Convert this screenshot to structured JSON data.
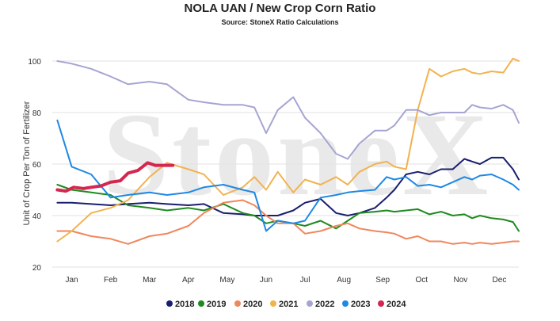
{
  "chart_data": {
    "type": "line",
    "title": "NOLA UAN / New Crop Corn Ratio",
    "subtitle": "Source: StoneX Ratio Calculations",
    "watermark": "StoneX",
    "xlabel": "",
    "ylabel": "Unit of Crop Per Ton of Fertilizer",
    "ylim": [
      20,
      100
    ],
    "yticks": [
      20,
      40,
      60,
      80,
      100
    ],
    "xlim": [
      0,
      12
    ],
    "x_tick_positions": [
      0.5,
      1.5,
      2.5,
      3.5,
      4.5,
      5.5,
      6.5,
      7.5,
      8.5,
      9.5,
      10.5,
      11.5
    ],
    "x_tick_labels": [
      "Jan",
      "Feb",
      "Mar",
      "Apr",
      "May",
      "Jun",
      "Jul",
      "Aug",
      "Sep",
      "Oct",
      "Nov",
      "Dec"
    ],
    "grid": "horizontal",
    "legend": "bottom",
    "series": [
      {
        "name": "2018",
        "color": "#1a1e6e",
        "x": [
          0.13,
          0.5,
          1.0,
          1.5,
          1.95,
          2.5,
          2.95,
          3.5,
          3.9,
          4.4,
          4.9,
          5.2,
          5.5,
          5.8,
          6.2,
          6.5,
          6.9,
          7.3,
          7.6,
          7.9,
          8.3,
          8.6,
          8.8,
          9.1,
          9.4,
          9.7,
          10.0,
          10.3,
          10.6,
          10.8,
          11.0,
          11.3,
          11.6,
          11.85,
          12.0
        ],
        "y": [
          45,
          45,
          44.5,
          44,
          44.5,
          45,
          44.5,
          44,
          44.5,
          41,
          40.5,
          40,
          40,
          40,
          42,
          45,
          46.5,
          41,
          40,
          41,
          43,
          47,
          50,
          56,
          57,
          56,
          58,
          58,
          62,
          61,
          60,
          62.5,
          62.5,
          58,
          54
        ]
      },
      {
        "name": "2019",
        "color": "#1e8a1e",
        "x": [
          0.13,
          0.5,
          1.0,
          1.5,
          1.95,
          2.5,
          2.95,
          3.5,
          3.9,
          4.4,
          4.9,
          5.2,
          5.5,
          5.8,
          6.2,
          6.5,
          6.9,
          7.3,
          7.6,
          7.9,
          8.3,
          8.6,
          8.8,
          9.1,
          9.4,
          9.7,
          10.0,
          10.3,
          10.6,
          10.8,
          11.0,
          11.3,
          11.6,
          11.85,
          12.0
        ],
        "y": [
          52,
          50,
          49,
          48,
          44,
          43,
          42,
          43,
          42,
          44.5,
          41,
          40,
          37,
          38,
          37,
          36,
          38,
          35,
          38,
          41,
          41.5,
          42,
          41.5,
          42,
          42.5,
          40.5,
          41.5,
          40,
          40.5,
          39,
          40,
          39,
          38.5,
          37.5,
          34
        ]
      },
      {
        "name": "2020",
        "color": "#f0875c",
        "x": [
          0.13,
          0.5,
          1.0,
          1.5,
          1.95,
          2.5,
          2.95,
          3.5,
          3.9,
          4.4,
          4.9,
          5.2,
          5.5,
          5.8,
          6.2,
          6.5,
          6.9,
          7.3,
          7.6,
          7.9,
          8.3,
          8.6,
          8.8,
          9.1,
          9.4,
          9.7,
          10.0,
          10.3,
          10.6,
          10.8,
          11.0,
          11.3,
          11.6,
          11.85,
          12.0
        ],
        "y": [
          34,
          34,
          32,
          31,
          29,
          32,
          33,
          36,
          41,
          45,
          46,
          44,
          40,
          37,
          37,
          33,
          34,
          36,
          37,
          35,
          34,
          33.5,
          33,
          31,
          32,
          30,
          30,
          29,
          29.5,
          29,
          29.5,
          29,
          29.5,
          30,
          30
        ]
      },
      {
        "name": "2021",
        "color": "#f2b24f",
        "x": [
          0.13,
          0.5,
          1.0,
          1.5,
          1.95,
          2.5,
          2.95,
          3.5,
          3.9,
          4.4,
          4.9,
          5.2,
          5.5,
          5.8,
          6.2,
          6.5,
          6.9,
          7.3,
          7.6,
          7.9,
          8.3,
          8.6,
          8.8,
          9.1,
          9.4,
          9.7,
          10.0,
          10.3,
          10.6,
          10.8,
          11.0,
          11.3,
          11.6,
          11.85,
          12.0
        ],
        "y": [
          30,
          34,
          41,
          43,
          46,
          55,
          60.5,
          58,
          56,
          48,
          51,
          55,
          50,
          57,
          49,
          54,
          52,
          55,
          52,
          57,
          60,
          61,
          59,
          58,
          81,
          97,
          94,
          96,
          97,
          95.5,
          95,
          96,
          95.5,
          101,
          100
        ]
      },
      {
        "name": "2022",
        "color": "#a5a5d2",
        "x": [
          0.13,
          0.5,
          1.0,
          1.5,
          1.95,
          2.5,
          2.95,
          3.5,
          3.9,
          4.4,
          4.9,
          5.2,
          5.5,
          5.8,
          6.2,
          6.5,
          6.9,
          7.3,
          7.6,
          7.9,
          8.3,
          8.6,
          8.8,
          9.1,
          9.4,
          9.7,
          10.0,
          10.3,
          10.6,
          10.8,
          11.0,
          11.3,
          11.6,
          11.85,
          12.0
        ],
        "y": [
          100,
          99,
          97,
          94,
          91,
          92,
          91,
          85,
          84,
          83,
          83,
          82,
          72,
          81,
          86,
          78,
          72,
          64,
          62,
          68,
          73,
          73,
          75,
          81,
          81,
          79,
          80,
          80,
          80,
          83,
          82,
          81.5,
          83,
          81,
          76
        ]
      },
      {
        "name": "2023",
        "color": "#1e88e5",
        "x": [
          0.13,
          0.5,
          1.0,
          1.5,
          1.95,
          2.5,
          2.95,
          3.5,
          3.9,
          4.4,
          4.9,
          5.2,
          5.5,
          5.8,
          6.2,
          6.5,
          6.9,
          7.3,
          7.6,
          7.9,
          8.3,
          8.6,
          8.8,
          9.1,
          9.4,
          9.7,
          10.0,
          10.3,
          10.6,
          10.8,
          11.0,
          11.3,
          11.6,
          11.85,
          12.0
        ],
        "y": [
          77,
          59,
          56,
          47,
          48,
          49,
          48,
          49,
          51,
          52,
          50,
          49,
          34,
          38,
          37,
          38,
          47,
          48,
          49,
          49.5,
          50,
          55,
          54,
          55,
          51.5,
          52,
          51,
          53,
          55,
          54,
          55.5,
          56,
          54,
          52,
          50
        ]
      },
      {
        "name": "2024",
        "color": "#d4264f",
        "x": [
          0.13,
          0.35,
          0.55,
          0.8,
          1.0,
          1.25,
          1.5,
          1.75,
          1.95,
          2.2,
          2.45,
          2.65,
          2.85,
          3.1
        ],
        "y": [
          50,
          49.5,
          51,
          50.5,
          51,
          51.5,
          53,
          53.5,
          56.5,
          57.5,
          60.5,
          59.5,
          59.5,
          59.5
        ]
      }
    ]
  }
}
